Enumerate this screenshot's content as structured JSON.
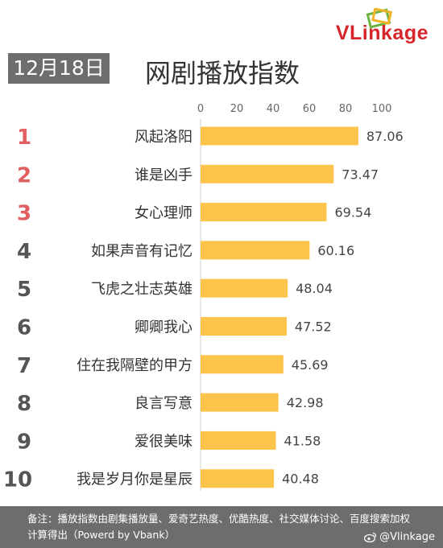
{
  "brand": {
    "logo_text": "VLinkage",
    "brand_color": "#d7262b"
  },
  "date_badge": "12月18日",
  "title": "网剧播放指数",
  "chart_data": {
    "type": "bar",
    "orientation": "horizontal",
    "title": "网剧播放指数",
    "xlim": [
      0,
      100
    ],
    "x_ticks": [
      0,
      20,
      40,
      60,
      80,
      100
    ],
    "axis_position": "top",
    "grid": false,
    "ranks": [
      "1",
      "2",
      "3",
      "4",
      "5",
      "6",
      "7",
      "8",
      "9",
      "10"
    ],
    "categories": [
      "风起洛阳",
      "谁是凶手",
      "女心理师",
      "如果声音有记忆",
      "飞虎之壮志英雄",
      "卿卿我心",
      "住在我隔壁的甲方",
      "良言写意",
      "爱很美味",
      "我是岁月你是星辰"
    ],
    "values": [
      87.06,
      73.47,
      69.54,
      60.16,
      48.04,
      47.52,
      45.69,
      42.98,
      41.58,
      40.48
    ],
    "value_labels": [
      "87.06",
      "73.47",
      "69.54",
      "60.16",
      "48.04",
      "47.52",
      "45.69",
      "42.98",
      "41.58",
      "40.48"
    ],
    "bar_color": "#fcc44a",
    "top_rank_color": "#e06060",
    "rank_color": "#555555"
  },
  "footer": {
    "note": "备注：播放指数由剧集播放量、爱奇艺热度、优酷热度、社交媒体讨论、百度搜索加权计算得出（Powerd by Vbank）",
    "weibo": "@Vlinkage"
  }
}
